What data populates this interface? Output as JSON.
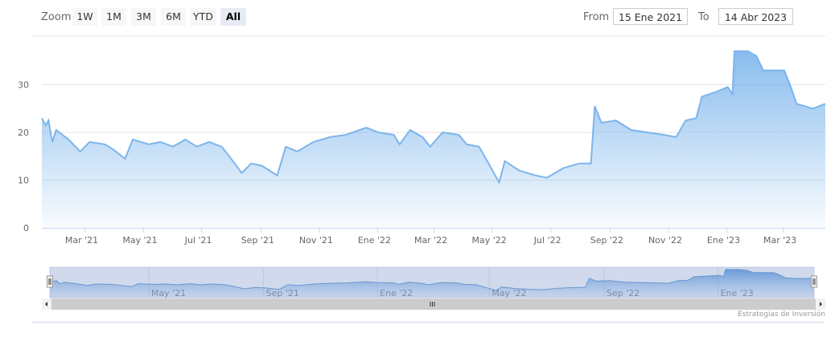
{
  "toolbar": {
    "zoom_label": "Zoom",
    "buttons": [
      "1W",
      "1M",
      "3M",
      "6M",
      "YTD",
      "All"
    ],
    "selected": "All",
    "from_label": "From",
    "from_value": "15 Ene 2021",
    "to_label": "To",
    "to_value": "14 Abr 2023"
  },
  "credits": "Estrategias de Inversión",
  "colors": {
    "line": "#7cb5ec",
    "fill_top": "#7cb5ec",
    "navigator_mask": "rgba(102,133,194,0.3)"
  },
  "chart_data": {
    "type": "area",
    "ylim": [
      0,
      38
    ],
    "yticks": [
      0,
      10,
      20,
      30
    ],
    "xlim": [
      "2021-01-15",
      "2023-04-14"
    ],
    "xticks": [
      {
        "date": "2021-03-01",
        "label": "Mar '21"
      },
      {
        "date": "2021-05-01",
        "label": "May '21"
      },
      {
        "date": "2021-07-01",
        "label": "Jul '21"
      },
      {
        "date": "2021-09-01",
        "label": "Sep '21"
      },
      {
        "date": "2021-11-01",
        "label": "Nov '21"
      },
      {
        "date": "2022-01-01",
        "label": "Ene '22"
      },
      {
        "date": "2022-03-01",
        "label": "Mar '22"
      },
      {
        "date": "2022-05-01",
        "label": "May '22"
      },
      {
        "date": "2022-07-01",
        "label": "Jul '22"
      },
      {
        "date": "2022-09-01",
        "label": "Sep '22"
      },
      {
        "date": "2022-11-01",
        "label": "Nov '22"
      },
      {
        "date": "2023-01-01",
        "label": "Ene '23"
      },
      {
        "date": "2023-03-01",
        "label": "Mar '23"
      }
    ],
    "navigator_ticks": [
      {
        "date": "2021-05-01",
        "label": "May '21"
      },
      {
        "date": "2021-09-01",
        "label": "Sep '21"
      },
      {
        "date": "2022-01-01",
        "label": "Ene '22"
      },
      {
        "date": "2022-05-01",
        "label": "May '22"
      },
      {
        "date": "2022-09-01",
        "label": "Sep '22"
      },
      {
        "date": "2023-01-01",
        "label": "Ene '23"
      }
    ],
    "grid": true,
    "points": [
      [
        "2021-01-15",
        23
      ],
      [
        "2021-01-19",
        21.5
      ],
      [
        "2021-01-22",
        22.5
      ],
      [
        "2021-01-26",
        18
      ],
      [
        "2021-01-30",
        20.5
      ],
      [
        "2021-02-12",
        18.5
      ],
      [
        "2021-02-24",
        16
      ],
      [
        "2021-03-06",
        18
      ],
      [
        "2021-03-22",
        17.5
      ],
      [
        "2021-03-30",
        16.5
      ],
      [
        "2021-04-12",
        14.5
      ],
      [
        "2021-04-20",
        18.5
      ],
      [
        "2021-05-07",
        17.5
      ],
      [
        "2021-05-19",
        18
      ],
      [
        "2021-06-01",
        17
      ],
      [
        "2021-06-14",
        18.5
      ],
      [
        "2021-06-26",
        17
      ],
      [
        "2021-07-09",
        18
      ],
      [
        "2021-07-22",
        17
      ],
      [
        "2021-07-30",
        15
      ],
      [
        "2021-08-12",
        11.5
      ],
      [
        "2021-08-22",
        13.5
      ],
      [
        "2021-09-02",
        13
      ],
      [
        "2021-09-18",
        11
      ],
      [
        "2021-09-27",
        17
      ],
      [
        "2021-10-09",
        16
      ],
      [
        "2021-10-26",
        18
      ],
      [
        "2021-11-12",
        19
      ],
      [
        "2021-11-29",
        19.5
      ],
      [
        "2021-12-20",
        21
      ],
      [
        "2022-01-02",
        20
      ],
      [
        "2022-01-18",
        19.5
      ],
      [
        "2022-01-24",
        17.5
      ],
      [
        "2022-02-04",
        20.5
      ],
      [
        "2022-02-17",
        19
      ],
      [
        "2022-02-25",
        17
      ],
      [
        "2022-03-10",
        20
      ],
      [
        "2022-03-27",
        19.5
      ],
      [
        "2022-04-04",
        17.5
      ],
      [
        "2022-04-17",
        17
      ],
      [
        "2022-04-27",
        13.5
      ],
      [
        "2022-05-08",
        9.5
      ],
      [
        "2022-05-14",
        14
      ],
      [
        "2022-05-29",
        12
      ],
      [
        "2022-06-15",
        11
      ],
      [
        "2022-06-27",
        10.5
      ],
      [
        "2022-07-14",
        12.5
      ],
      [
        "2022-07-31",
        13.5
      ],
      [
        "2022-08-12",
        13.5
      ],
      [
        "2022-08-16",
        25.5
      ],
      [
        "2022-08-23",
        22
      ],
      [
        "2022-09-07",
        22.5
      ],
      [
        "2022-09-23",
        20.5
      ],
      [
        "2022-10-10",
        20
      ],
      [
        "2022-10-27",
        19.5
      ],
      [
        "2022-11-09",
        19
      ],
      [
        "2022-11-19",
        22.5
      ],
      [
        "2022-11-30",
        23
      ],
      [
        "2022-12-06",
        27.5
      ],
      [
        "2022-12-21",
        28.5
      ],
      [
        "2023-01-02",
        29.5
      ],
      [
        "2023-01-07",
        28
      ],
      [
        "2023-01-09",
        37
      ],
      [
        "2023-01-23",
        37
      ],
      [
        "2023-02-01",
        36
      ],
      [
        "2023-02-08",
        33
      ],
      [
        "2023-03-02",
        33
      ],
      [
        "2023-03-08",
        30
      ],
      [
        "2023-03-15",
        26
      ],
      [
        "2023-04-01",
        25
      ],
      [
        "2023-04-14",
        26
      ]
    ]
  }
}
